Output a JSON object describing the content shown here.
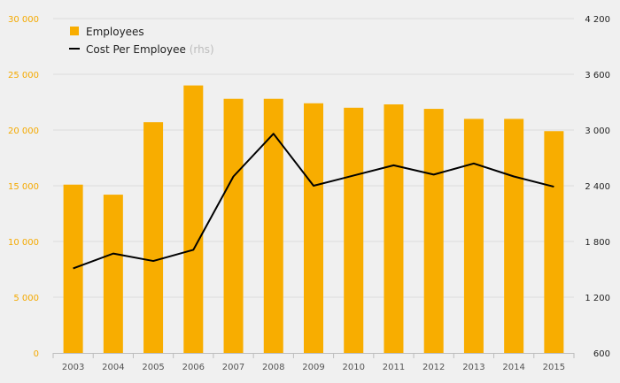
{
  "chart_data": {
    "type": "bar+line",
    "categories": [
      "2003",
      "2004",
      "2005",
      "2006",
      "2007",
      "2008",
      "2009",
      "2010",
      "2011",
      "2012",
      "2013",
      "2014",
      "2015"
    ],
    "series": [
      {
        "name": "Employees",
        "type": "bar",
        "axis": "left",
        "values": [
          15100,
          14200,
          20700,
          24000,
          22800,
          22800,
          22400,
          22000,
          22300,
          21900,
          21000,
          21000,
          19900
        ]
      },
      {
        "name": "Cost Per Employee",
        "type": "line",
        "axis": "right",
        "values": [
          1510,
          1670,
          1590,
          1710,
          2500,
          2960,
          2400,
          2510,
          2620,
          2520,
          2640,
          2500,
          2390
        ]
      }
    ],
    "left_axis": {
      "ylim": [
        0,
        30000
      ],
      "ticks": [
        0,
        5000,
        10000,
        15000,
        20000,
        25000,
        30000
      ],
      "tick_labels": [
        "0",
        "5 000",
        "10 000",
        "15 000",
        "20 000",
        "25 000",
        "30 000"
      ]
    },
    "right_axis": {
      "ylim": [
        600,
        4200
      ],
      "ticks": [
        600,
        1200,
        1800,
        2400,
        3000,
        3600,
        4200
      ],
      "tick_labels": [
        "600",
        "1 200",
        "1 800",
        "2 400",
        "3 000",
        "3 600",
        "4 200"
      ]
    },
    "legend": {
      "placement": "top-left",
      "entries": [
        "Employees",
        "Cost Per Employee"
      ],
      "rhs_note": "(rhs)"
    },
    "colors": {
      "bars": "#f8ad00",
      "line": "#000000",
      "left_ticks": "#f4a900",
      "grid": "#dddddd",
      "background": "#f0f0f0"
    },
    "grid": true
  }
}
